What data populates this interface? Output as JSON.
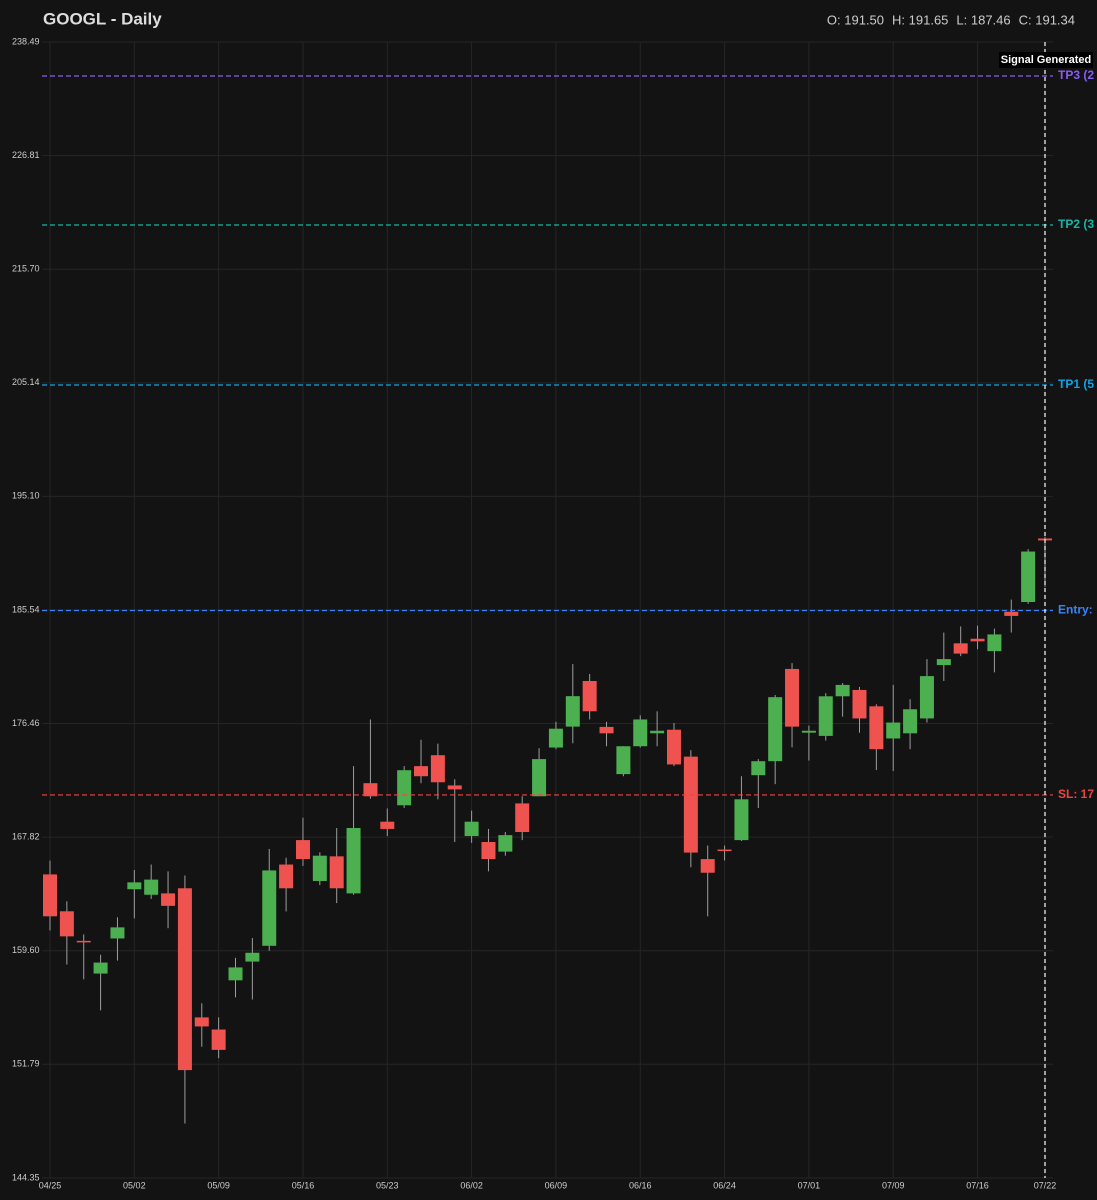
{
  "chart_data": {
    "type": "candlestick",
    "title": "GOOGL - Daily",
    "ohlc_text": [
      "O: 191.50",
      "H: 191.65",
      "L: 187.46",
      "C: 191.34"
    ],
    "log_scale": true,
    "grid": true,
    "up_color": "#4caf50",
    "down_color": "#ef5350",
    "ylim": [
      144.35,
      238.49
    ],
    "yticks": [
      144.35,
      151.79,
      {
        "value": 159.6,
        "label": "159.60"
      },
      167.82,
      176.46,
      185.54,
      {
        "value": 195.1,
        "label": "195.10"
      },
      205.14,
      {
        "value": 215.7,
        "label": "215.70"
      },
      226.81,
      238.49
    ],
    "categories": [
      "04/25",
      null,
      null,
      null,
      null,
      "05/02",
      null,
      null,
      null,
      null,
      "05/09",
      null,
      null,
      null,
      null,
      "05/16",
      null,
      null,
      null,
      null,
      "05/23",
      null,
      null,
      null,
      null,
      "06/02",
      null,
      null,
      null,
      null,
      "06/09",
      null,
      null,
      null,
      null,
      "06/16",
      null,
      null,
      null,
      null,
      "06/24",
      null,
      null,
      null,
      null,
      "07/01",
      null,
      null,
      null,
      null,
      "07/09",
      null,
      null,
      null,
      null,
      "07/16",
      null,
      null,
      null,
      "07/22"
    ],
    "open": [
      165.08,
      162.41,
      160.3,
      158.0,
      160.47,
      164.0,
      163.6,
      163.7,
      164.07,
      154.97,
      154.14,
      157.53,
      158.84,
      159.95,
      165.8,
      167.6,
      164.6,
      166.4,
      163.7,
      171.87,
      168.97,
      170.2,
      173.17,
      174.01,
      171.7,
      167.9,
      167.46,
      166.75,
      170.34,
      170.88,
      174.6,
      176.22,
      179.81,
      176.2,
      172.56,
      174.7,
      175.7,
      175.98,
      173.9,
      166.2,
      166.9,
      167.6,
      172.48,
      173.55,
      180.77,
      175.75,
      175.5,
      178.6,
      179.1,
      177.81,
      175.3,
      175.7,
      176.86,
      181.08,
      182.83,
      183.2,
      182.2,
      185.4,
      186.2,
      191.5
    ],
    "high": [
      166.09,
      163.13,
      160.76,
      159.32,
      161.98,
      165.4,
      165.8,
      165.3,
      165.0,
      155.94,
      154.97,
      159.1,
      160.5,
      166.95,
      166.3,
      169.27,
      166.7,
      168.5,
      173.17,
      176.78,
      169.96,
      173.17,
      175.2,
      174.9,
      172.17,
      169.8,
      168.43,
      168.2,
      170.88,
      174.55,
      176.6,
      181.16,
      180.37,
      176.6,
      174.7,
      177.1,
      177.42,
      176.5,
      174.4,
      167.2,
      167.2,
      172.4,
      173.71,
      178.7,
      181.24,
      176.3,
      178.85,
      179.65,
      179.34,
      177.97,
      179.5,
      178.37,
      181.56,
      183.7,
      184.2,
      184.26,
      184.02,
      186.4,
      190.6,
      191.65
    ],
    "low": [
      161.04,
      158.63,
      157.6,
      155.45,
      158.91,
      161.9,
      163.3,
      161.2,
      147.87,
      152.97,
      152.2,
      156.35,
      156.2,
      159.6,
      162.4,
      165.7,
      164.3,
      163.0,
      163.6,
      170.7,
      167.9,
      170.0,
      171.87,
      170.65,
      167.46,
      167.4,
      165.3,
      166.45,
      167.6,
      170.88,
      174.47,
      174.93,
      176.78,
      174.7,
      172.4,
      174.6,
      174.7,
      173.17,
      165.6,
      162.05,
      166.1,
      167.53,
      170.0,
      171.8,
      174.62,
      173.6,
      175.14,
      177.0,
      175.75,
      172.87,
      172.8,
      174.47,
      176.54,
      179.81,
      181.8,
      182.35,
      180.5,
      183.7,
      186.05,
      187.46
    ],
    "close": [
      162.05,
      160.62,
      160.2,
      158.77,
      161.26,
      164.5,
      164.7,
      162.8,
      151.4,
      154.35,
      152.76,
      158.43,
      159.46,
      165.37,
      164.07,
      166.2,
      166.45,
      164.07,
      168.5,
      170.88,
      168.43,
      172.86,
      172.4,
      171.94,
      171.4,
      168.97,
      166.2,
      167.97,
      168.2,
      173.71,
      176.06,
      178.61,
      177.42,
      175.7,
      174.7,
      176.78,
      175.9,
      173.3,
      166.68,
      165.2,
      166.8,
      170.65,
      173.55,
      178.53,
      176.22,
      175.9,
      178.6,
      179.5,
      176.86,
      174.47,
      176.54,
      177.58,
      180.2,
      181.56,
      182.0,
      182.99,
      183.55,
      185.06,
      190.4,
      191.34
    ],
    "levels": [
      {
        "label": "TP3 (2",
        "value": 234.93,
        "color": "#8b5cf6"
      },
      {
        "label": "TP2 (3",
        "value": 219.96,
        "color": "#14b8a6"
      },
      {
        "label": "TP1 (5",
        "value": 204.94,
        "color": "#0ea5e9"
      },
      {
        "label": "Entry:",
        "value": 185.5,
        "color": "#3b82f6"
      },
      {
        "label": "SL: 17",
        "value": 170.98,
        "color": "#ef4444"
      }
    ],
    "signal_label": "Signal Generated"
  }
}
